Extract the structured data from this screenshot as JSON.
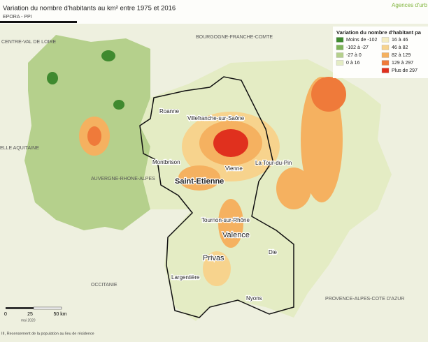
{
  "header": {
    "title": "Variation du nombre d'habitants au km² entre 1975 et 2016",
    "subtitle": "EPORA - PPI",
    "logo": "Agences d'urb"
  },
  "legend": {
    "title": "Variation du nombre d'habitant pa",
    "items": [
      {
        "label": "Moins de -102",
        "color": "#3f8a2f"
      },
      {
        "label": "-102 à -27",
        "color": "#7fb45a"
      },
      {
        "label": "-27 à 0",
        "color": "#b5d08c"
      },
      {
        "label": "0 à 16",
        "color": "#e4ecc4"
      },
      {
        "label": "16 à 46",
        "color": "#f3ecc2"
      },
      {
        "label": "46 à 82",
        "color": "#f7d38d"
      },
      {
        "label": "82 à 129",
        "color": "#f5b160"
      },
      {
        "label": "129 à 297",
        "color": "#ef7a3a"
      },
      {
        "label": "Plus de 297",
        "color": "#e0301e"
      }
    ]
  },
  "regions": [
    "CENTRE-VAL DE LOIRE",
    "BOURGOGNE-FRANCHE-COMTE",
    "ELLE AQUITAINE",
    "AUVERGNE-RHONE-ALPES",
    "OCCITANIE",
    "PROVENCE-ALPES-COTE D'AZUR"
  ],
  "cities": [
    "Roanne",
    "Villefranche-sur-Saône",
    "Montbrison",
    "Saint-Etienne",
    "Vienne",
    "La Tour-du-Pin",
    "Tournon-sur-Rhône",
    "Valence",
    "Privas",
    "Die",
    "Largentière",
    "Nyons"
  ],
  "scale": {
    "ticks": [
      "0",
      "25",
      "50 km"
    ],
    "date": "mai 2020"
  },
  "source": "III, Recensement de la population au lieu de résidence"
}
